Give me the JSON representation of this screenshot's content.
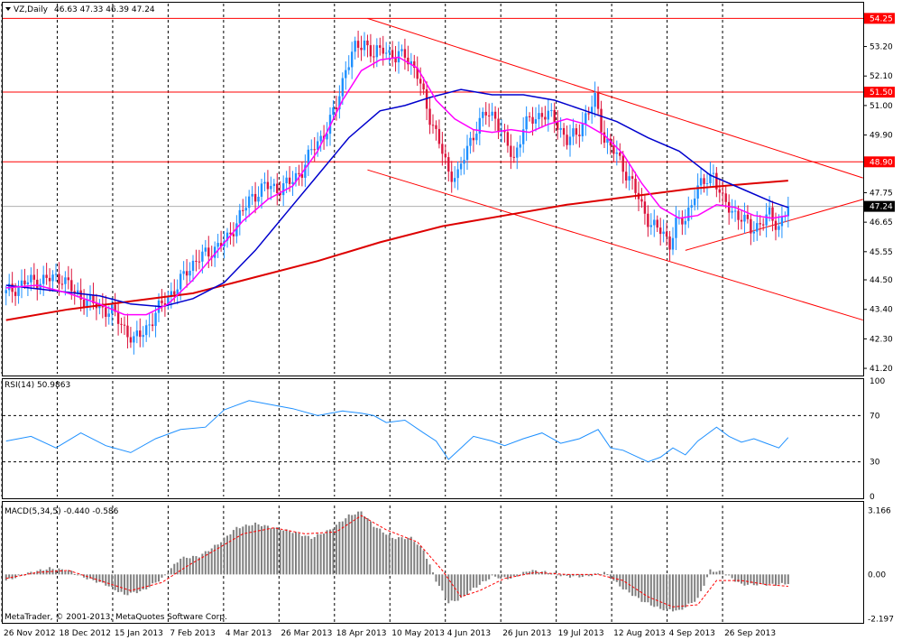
{
  "header": {
    "symbol_label": "VZ,Daily",
    "ohlc": "46.63 47.33 46.39 47.24"
  },
  "copyright": "MetaTrader, © 2001-2013, MetaQuotes Software Corp.",
  "chart_data": [
    {
      "type": "candlestick",
      "panel": "price",
      "y_ticks": [
        "53.20",
        "52.10",
        "51.00",
        "49.90",
        "47.75",
        "46.65",
        "45.55",
        "44.50",
        "43.40",
        "42.30",
        "41.20"
      ],
      "y_tick_values": [
        53.2,
        52.1,
        51.0,
        49.9,
        47.75,
        46.65,
        45.55,
        44.5,
        43.4,
        42.3,
        41.2
      ],
      "ylim": [
        41.0,
        54.8
      ],
      "price_lines": [
        {
          "label": "54.25",
          "value": 54.25
        },
        {
          "label": "51.50",
          "value": 51.5
        },
        {
          "label": "48.90",
          "value": 48.9
        }
      ],
      "current_price": {
        "label": "47.24",
        "value": 47.24
      },
      "x_labels": [
        "26 Nov 2012",
        "18 Dec 2012",
        "15 Jan 2013",
        "7 Feb 2013",
        "4 Mar 2013",
        "26 Mar 2013",
        "18 Apr 2013",
        "10 May 2013",
        "4 Jun 2013",
        "26 Jun 2013",
        "19 Jul 2013",
        "12 Aug 2013",
        "4 Sep 2013",
        "26 Sep 2013"
      ],
      "colors": {
        "up": "#1e90ff",
        "down": "#dc143c",
        "ma_slow": "#0000cd",
        "ma_fast": "#ff00ff",
        "ma_long": "#dd0000",
        "channel": "#ff0000"
      },
      "close_path": [
        [
          0,
          44.0
        ],
        [
          6,
          44.4
        ],
        [
          12,
          44.5
        ],
        [
          18,
          44.6
        ],
        [
          22,
          44.0
        ],
        [
          28,
          43.6
        ],
        [
          34,
          43.3
        ],
        [
          38,
          42.7
        ],
        [
          41,
          42.2
        ],
        [
          44,
          42.6
        ],
        [
          47,
          43.0
        ],
        [
          51,
          43.8
        ],
        [
          55,
          44.2
        ],
        [
          58,
          44.9
        ],
        [
          62,
          45.3
        ],
        [
          66,
          45.6
        ],
        [
          71,
          46.0
        ],
        [
          75,
          46.9
        ],
        [
          79,
          47.6
        ],
        [
          83,
          48.0
        ],
        [
          87,
          47.9
        ],
        [
          91,
          48.1
        ],
        [
          95,
          48.6
        ],
        [
          99,
          49.5
        ],
        [
          103,
          50.1
        ],
        [
          106,
          51.0
        ],
        [
          109,
          52.4
        ],
        [
          112,
          53.1
        ],
        [
          115,
          53.4
        ],
        [
          118,
          52.8
        ],
        [
          121,
          53.2
        ],
        [
          125,
          52.7
        ],
        [
          128,
          53.0
        ],
        [
          132,
          52.1
        ],
        [
          136,
          50.6
        ],
        [
          139,
          49.6
        ],
        [
          142,
          48.5
        ],
        [
          145,
          48.4
        ],
        [
          148,
          49.4
        ],
        [
          151,
          50.2
        ],
        [
          154,
          50.7
        ],
        [
          157,
          50.6
        ],
        [
          160,
          49.7
        ],
        [
          163,
          49.0
        ],
        [
          166,
          50.2
        ],
        [
          169,
          50.5
        ],
        [
          172,
          50.7
        ],
        [
          176,
          50.5
        ],
        [
          180,
          49.7
        ],
        [
          183,
          49.9
        ],
        [
          186,
          50.6
        ],
        [
          189,
          51.2
        ],
        [
          192,
          49.8
        ],
        [
          195,
          49.3
        ],
        [
          198,
          48.7
        ],
        [
          201,
          48.1
        ],
        [
          204,
          47.2
        ],
        [
          207,
          46.6
        ],
        [
          210,
          46.3
        ],
        [
          213,
          45.9
        ],
        [
          215,
          46.6
        ],
        [
          218,
          46.7
        ],
        [
          221,
          47.8
        ],
        [
          224,
          48.1
        ],
        [
          227,
          48.5
        ],
        [
          230,
          47.4
        ],
        [
          233,
          47.1
        ],
        [
          236,
          46.8
        ],
        [
          239,
          46.4
        ],
        [
          242,
          46.6
        ],
        [
          245,
          46.9
        ],
        [
          248,
          46.5
        ],
        [
          251,
          47.24
        ]
      ],
      "ma_fast": [
        [
          0,
          44.2
        ],
        [
          10,
          44.3
        ],
        [
          20,
          44.0
        ],
        [
          30,
          43.6
        ],
        [
          38,
          43.2
        ],
        [
          45,
          43.2
        ],
        [
          52,
          43.6
        ],
        [
          60,
          44.5
        ],
        [
          68,
          45.6
        ],
        [
          76,
          46.7
        ],
        [
          84,
          47.5
        ],
        [
          92,
          48.0
        ],
        [
          100,
          49.3
        ],
        [
          108,
          51.2
        ],
        [
          114,
          52.3
        ],
        [
          120,
          52.7
        ],
        [
          126,
          52.8
        ],
        [
          132,
          52.4
        ],
        [
          138,
          51.2
        ],
        [
          144,
          50.5
        ],
        [
          150,
          50.1
        ],
        [
          156,
          50.0
        ],
        [
          162,
          50.1
        ],
        [
          168,
          50.0
        ],
        [
          174,
          50.3
        ],
        [
          180,
          50.5
        ],
        [
          186,
          50.3
        ],
        [
          192,
          49.9
        ],
        [
          198,
          49.2
        ],
        [
          204,
          48.1
        ],
        [
          210,
          47.2
        ],
        [
          216,
          46.8
        ],
        [
          222,
          46.9
        ],
        [
          228,
          47.3
        ],
        [
          234,
          47.2
        ],
        [
          240,
          46.9
        ],
        [
          246,
          46.8
        ],
        [
          251,
          46.9
        ]
      ],
      "ma_slow": [
        [
          0,
          44.3
        ],
        [
          15,
          44.1
        ],
        [
          30,
          43.9
        ],
        [
          40,
          43.6
        ],
        [
          50,
          43.5
        ],
        [
          60,
          43.8
        ],
        [
          70,
          44.4
        ],
        [
          80,
          45.6
        ],
        [
          90,
          47.0
        ],
        [
          100,
          48.4
        ],
        [
          110,
          49.8
        ],
        [
          120,
          50.8
        ],
        [
          128,
          51.0
        ],
        [
          136,
          51.3
        ],
        [
          146,
          51.6
        ],
        [
          156,
          51.4
        ],
        [
          166,
          51.4
        ],
        [
          176,
          51.2
        ],
        [
          186,
          50.8
        ],
        [
          196,
          50.4
        ],
        [
          206,
          49.8
        ],
        [
          216,
          49.3
        ],
        [
          226,
          48.4
        ],
        [
          236,
          47.9
        ],
        [
          246,
          47.4
        ],
        [
          251,
          47.2
        ]
      ],
      "ma_long": [
        [
          0,
          43.0
        ],
        [
          20,
          43.4
        ],
        [
          40,
          43.7
        ],
        [
          60,
          44.0
        ],
        [
          80,
          44.6
        ],
        [
          100,
          45.2
        ],
        [
          120,
          45.9
        ],
        [
          140,
          46.5
        ],
        [
          160,
          46.9
        ],
        [
          180,
          47.3
        ],
        [
          200,
          47.6
        ],
        [
          220,
          47.9
        ],
        [
          240,
          48.1
        ],
        [
          251,
          48.2
        ]
      ],
      "channel_lines": [
        {
          "from": [
            116,
            54.25
          ],
          "to": [
            275,
            48.3
          ]
        },
        {
          "from": [
            116,
            48.6
          ],
          "to": [
            275,
            43.0
          ]
        },
        {
          "from": [
            218,
            45.6
          ],
          "to": [
            275,
            47.5
          ]
        }
      ],
      "bars_total": 275
    },
    {
      "type": "line",
      "panel": "rsi",
      "title": "RSI(14) 50.9863",
      "y_ticks": [
        "100",
        "70",
        "30",
        "0"
      ],
      "y_tick_values": [
        100,
        70,
        30,
        0
      ],
      "ylim": [
        0,
        100
      ],
      "levels": [
        70,
        30
      ],
      "color": "#1e90ff",
      "points": [
        [
          0,
          48
        ],
        [
          8,
          52
        ],
        [
          16,
          42
        ],
        [
          24,
          55
        ],
        [
          32,
          44
        ],
        [
          40,
          38
        ],
        [
          48,
          50
        ],
        [
          56,
          58
        ],
        [
          64,
          60
        ],
        [
          70,
          75
        ],
        [
          78,
          83
        ],
        [
          84,
          80
        ],
        [
          92,
          76
        ],
        [
          100,
          70
        ],
        [
          108,
          74
        ],
        [
          114,
          72
        ],
        [
          118,
          70
        ],
        [
          122,
          64
        ],
        [
          128,
          66
        ],
        [
          134,
          55
        ],
        [
          138,
          48
        ],
        [
          142,
          32
        ],
        [
          146,
          42
        ],
        [
          150,
          52
        ],
        [
          156,
          48
        ],
        [
          160,
          44
        ],
        [
          166,
          50
        ],
        [
          172,
          55
        ],
        [
          178,
          46
        ],
        [
          184,
          50
        ],
        [
          190,
          58
        ],
        [
          194,
          42
        ],
        [
          198,
          40
        ],
        [
          202,
          35
        ],
        [
          206,
          30
        ],
        [
          210,
          34
        ],
        [
          214,
          42
        ],
        [
          218,
          36
        ],
        [
          222,
          48
        ],
        [
          228,
          60
        ],
        [
          232,
          52
        ],
        [
          236,
          47
        ],
        [
          240,
          50
        ],
        [
          244,
          46
        ],
        [
          248,
          42
        ],
        [
          251,
          51
        ]
      ]
    },
    {
      "type": "histogram",
      "panel": "macd",
      "title": "MACD(5,34,5) -0.440 -0.586",
      "y_ticks": [
        "3.166",
        "0.00",
        "-2.197"
      ],
      "y_tick_values": [
        3.166,
        0.0,
        -2.197
      ],
      "ylim": [
        -2.3,
        3.4
      ],
      "colors": {
        "bars": "#808080",
        "signal": "#ff0000"
      },
      "macd": [
        [
          0,
          -0.3
        ],
        [
          8,
          0.1
        ],
        [
          14,
          0.3
        ],
        [
          20,
          0.2
        ],
        [
          26,
          -0.2
        ],
        [
          32,
          -0.5
        ],
        [
          38,
          -1.0
        ],
        [
          44,
          -0.8
        ],
        [
          50,
          -0.2
        ],
        [
          56,
          0.8
        ],
        [
          62,
          0.9
        ],
        [
          68,
          1.5
        ],
        [
          74,
          2.3
        ],
        [
          80,
          2.5
        ],
        [
          86,
          2.3
        ],
        [
          92,
          2.1
        ],
        [
          98,
          1.8
        ],
        [
          104,
          2.2
        ],
        [
          110,
          2.9
        ],
        [
          114,
          3.1
        ],
        [
          118,
          2.4
        ],
        [
          124,
          1.8
        ],
        [
          130,
          1.8
        ],
        [
          134,
          1.2
        ],
        [
          138,
          -0.3
        ],
        [
          142,
          -1.4
        ],
        [
          146,
          -1.2
        ],
        [
          150,
          -0.7
        ],
        [
          156,
          -0.1
        ],
        [
          162,
          -0.2
        ],
        [
          168,
          0.2
        ],
        [
          174,
          0.1
        ],
        [
          180,
          -0.1
        ],
        [
          186,
          -0.1
        ],
        [
          192,
          0.1
        ],
        [
          198,
          -0.7
        ],
        [
          204,
          -1.3
        ],
        [
          210,
          -1.7
        ],
        [
          216,
          -1.8
        ],
        [
          222,
          -1.2
        ],
        [
          226,
          0.2
        ],
        [
          230,
          0.1
        ],
        [
          236,
          -0.5
        ],
        [
          242,
          -0.5
        ],
        [
          248,
          -0.5
        ],
        [
          251,
          -0.44
        ]
      ],
      "signal": [
        [
          0,
          -0.2
        ],
        [
          10,
          0.1
        ],
        [
          20,
          0.2
        ],
        [
          30,
          -0.3
        ],
        [
          40,
          -0.8
        ],
        [
          50,
          -0.4
        ],
        [
          58,
          0.4
        ],
        [
          66,
          1.1
        ],
        [
          76,
          2.0
        ],
        [
          86,
          2.3
        ],
        [
          96,
          2.0
        ],
        [
          106,
          2.1
        ],
        [
          114,
          2.9
        ],
        [
          122,
          2.2
        ],
        [
          132,
          1.6
        ],
        [
          140,
          0.2
        ],
        [
          146,
          -1.1
        ],
        [
          152,
          -0.8
        ],
        [
          160,
          -0.2
        ],
        [
          170,
          0.1
        ],
        [
          180,
          0.0
        ],
        [
          190,
          0.0
        ],
        [
          198,
          -0.3
        ],
        [
          206,
          -1.1
        ],
        [
          214,
          -1.6
        ],
        [
          222,
          -1.5
        ],
        [
          228,
          -0.3
        ],
        [
          236,
          -0.3
        ],
        [
          244,
          -0.5
        ],
        [
          251,
          -0.586
        ]
      ]
    }
  ]
}
